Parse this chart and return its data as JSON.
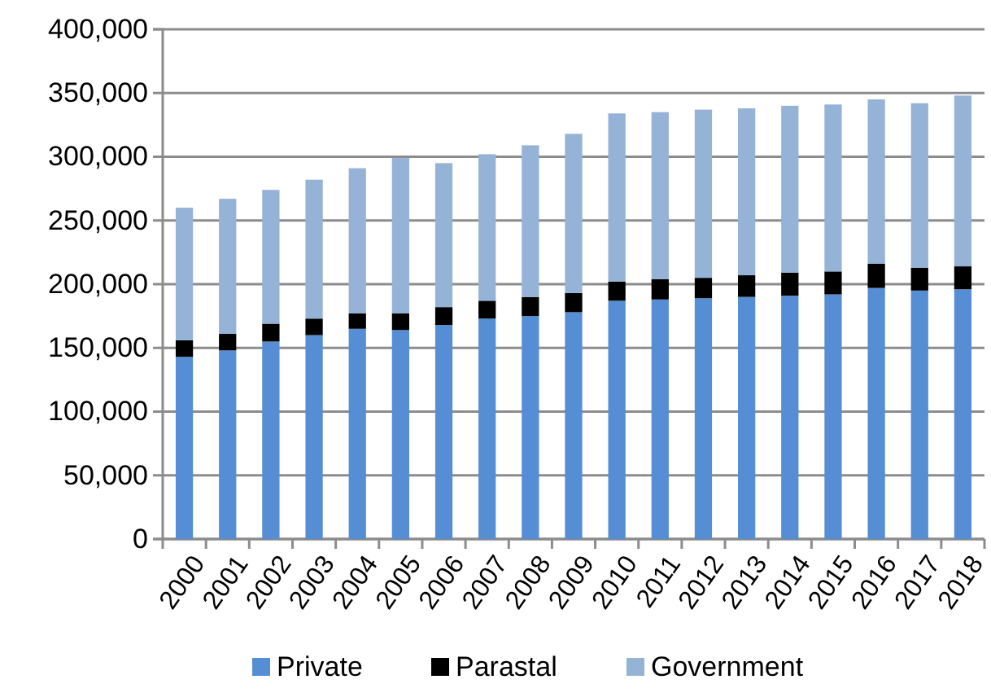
{
  "chart_data": {
    "type": "bar",
    "stacked": true,
    "categories": [
      "2000",
      "2001",
      "2002",
      "2003",
      "2004",
      "2005",
      "2006",
      "2007",
      "2008",
      "2009",
      "2010",
      "2011",
      "2012",
      "2013",
      "2014",
      "2015",
      "2016",
      "2017",
      "2018"
    ],
    "series": [
      {
        "name": "Private",
        "color": "#558ed5",
        "values": [
          143000,
          148000,
          155000,
          160000,
          165000,
          164000,
          168000,
          173000,
          175000,
          178000,
          187000,
          188000,
          189000,
          190000,
          191000,
          192000,
          197000,
          195000,
          196000
        ]
      },
      {
        "name": "Parastal",
        "color": "#000000",
        "values": [
          13000,
          13000,
          14000,
          13000,
          12000,
          13000,
          14000,
          14000,
          15000,
          15000,
          15000,
          16000,
          16000,
          17000,
          18000,
          18000,
          19000,
          18000,
          18000
        ]
      },
      {
        "name": "Government",
        "color": "#95b3d7",
        "values": [
          104000,
          106000,
          105000,
          109000,
          114000,
          122000,
          113000,
          115000,
          119000,
          125000,
          132000,
          131000,
          132000,
          131000,
          131000,
          131000,
          129000,
          129000,
          134000
        ]
      }
    ],
    "ylim": [
      0,
      400000
    ],
    "yticks": [
      {
        "value": 0,
        "label": "0"
      },
      {
        "value": 50000,
        "label": "50,000"
      },
      {
        "value": 100000,
        "label": "100,000"
      },
      {
        "value": 150000,
        "label": "150,000"
      },
      {
        "value": 200000,
        "label": "200,000"
      },
      {
        "value": 250000,
        "label": "250,000"
      },
      {
        "value": 300000,
        "label": "300,000"
      },
      {
        "value": 350000,
        "label": "350,000"
      },
      {
        "value": 400000,
        "label": "400,000"
      }
    ],
    "grid": "y",
    "legend": "bottom"
  }
}
